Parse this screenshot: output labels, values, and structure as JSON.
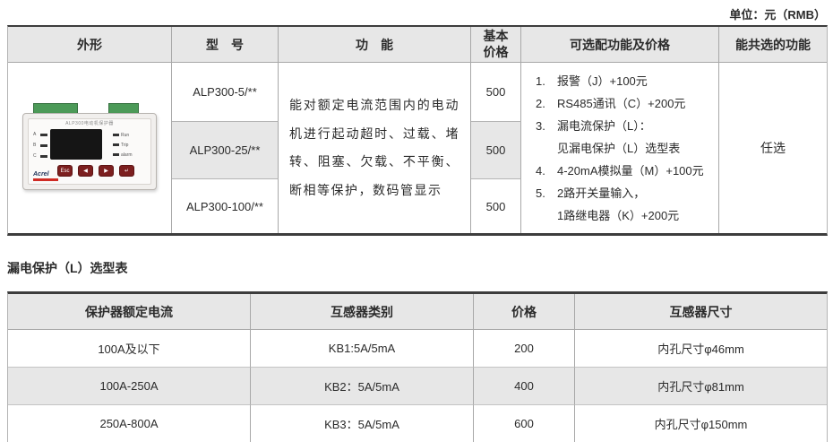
{
  "page": {
    "unit_label": "单位：元（RMB）"
  },
  "top_table": {
    "headers": {
      "appearance": "外形",
      "model": "型　号",
      "function": "功　能",
      "base_price": "基本\n价格",
      "optional": "可选配功能及价格",
      "co_select": "能共选的功能"
    },
    "models": [
      "ALP300-5/**",
      "ALP300-25/**",
      "ALP300-100/**"
    ],
    "prices": [
      "500",
      "500",
      "500"
    ],
    "function_text": "能对额定电流范围内的电动机进行起动超时、过载、堵转、阻塞、欠载、不平衡、断相等保护，数码管显示",
    "optional_lines": [
      {
        "no": "1.",
        "text": "报警（J）+100元"
      },
      {
        "no": "2.",
        "text": "RS485通讯（C）+200元"
      },
      {
        "no": "3.",
        "text": "漏电流保护（L）："
      },
      {
        "no": "",
        "text": "见漏电保护（L）选型表"
      },
      {
        "no": "4.",
        "text": "4-20mA模拟量（M）+100元"
      },
      {
        "no": "5.",
        "text": "2路开关量输入，"
      },
      {
        "no": "",
        "text": "1路继电器（K）+200元"
      }
    ],
    "co_select_value": "任选"
  },
  "leakage_table": {
    "title": "漏电保护（L）选型表",
    "headers": [
      "保护器额定电流",
      "互感器类别",
      "价格",
      "互感器尺寸"
    ],
    "rows": [
      [
        "100A及以下",
        "KB1:5A/5mA",
        "200",
        "内孔尺寸φ46mm"
      ],
      [
        "100A-250A",
        "KB2：5A/5mA",
        "400",
        "内孔尺寸φ81mm"
      ],
      [
        "250A-800A",
        "KB3：5A/5mA",
        "600",
        "内孔尺寸φ150mm"
      ]
    ]
  },
  "device": {
    "brand": "Acrel",
    "panel_title": "ALP300电动机保护器",
    "phase_labels": [
      "A",
      "B",
      "C"
    ],
    "status_labels": [
      "Run",
      "Trip",
      "alarm"
    ],
    "buttons": [
      "Esc",
      "◀",
      "▶",
      "↵"
    ],
    "colors": {
      "terminal_green": "#4c9a58",
      "brand_red": "#cf2b24",
      "display_black": "#151515"
    }
  }
}
